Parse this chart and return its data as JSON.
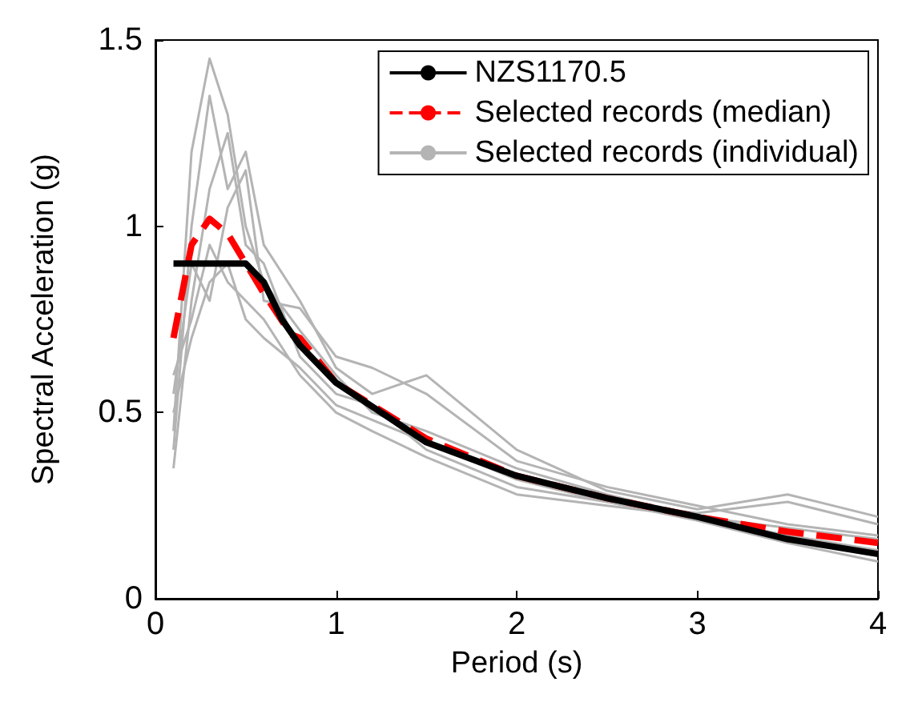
{
  "chart_data": {
    "type": "line",
    "xlabel": "Period (s)",
    "ylabel": "Spectral Acceleration (g)",
    "xlim": [
      0,
      4
    ],
    "xticks": [
      0,
      1,
      2,
      3,
      4
    ],
    "ylim": [
      0,
      1.5
    ],
    "yticks": [
      0,
      0.5,
      1,
      1.5
    ],
    "grid": false,
    "legend": "top right",
    "marker": "none",
    "series": [
      {
        "name": "NZS1170.5",
        "color": "#000000",
        "line_style": "solid",
        "x": [
          0.1,
          0.2,
          0.3,
          0.4,
          0.5,
          0.6,
          0.7,
          0.8,
          1.0,
          1.5,
          2.0,
          2.5,
          3.0,
          3.5,
          4.0
        ],
        "values": [
          0.9,
          0.9,
          0.9,
          0.9,
          0.9,
          0.85,
          0.75,
          0.68,
          0.58,
          0.42,
          0.33,
          0.27,
          0.22,
          0.16,
          0.12
        ]
      },
      {
        "name": "Selected records (median)",
        "color": "#ff0000",
        "line_style": "dashed",
        "x": [
          0.1,
          0.2,
          0.3,
          0.4,
          0.5,
          0.6,
          0.75,
          0.8,
          1.0,
          1.5,
          2.0,
          2.5,
          3.0,
          3.5,
          4.0
        ],
        "values": [
          0.7,
          0.95,
          1.02,
          0.98,
          0.9,
          0.82,
          0.71,
          0.7,
          0.58,
          0.43,
          0.33,
          0.27,
          0.22,
          0.18,
          0.15
        ]
      },
      {
        "name": "Selected records (individual)",
        "color": "#b4b4b4",
        "line_style": "solid",
        "x": [
          0.1,
          0.2,
          0.3,
          0.4,
          0.5,
          0.6,
          0.8,
          1.0,
          1.2,
          1.5,
          2.0,
          2.5,
          3.0,
          3.5,
          4.0
        ],
        "values": [
          0.45,
          1.2,
          1.45,
          1.3,
          1.0,
          0.85,
          0.72,
          0.6,
          0.5,
          0.45,
          0.35,
          0.28,
          0.22,
          0.17,
          0.13
        ]
      },
      {
        "color": "#b4b4b4",
        "line_style": "solid",
        "x": [
          0.1,
          0.2,
          0.3,
          0.4,
          0.5,
          0.6,
          0.8,
          1.0,
          1.2,
          1.5,
          2.0,
          2.5,
          3.0,
          3.5,
          4.0
        ],
        "values": [
          0.35,
          0.8,
          1.1,
          1.25,
          0.95,
          0.9,
          0.65,
          0.55,
          0.52,
          0.4,
          0.3,
          0.26,
          0.23,
          0.26,
          0.2
        ]
      },
      {
        "color": "#b4b4b4",
        "line_style": "solid",
        "x": [
          0.1,
          0.2,
          0.3,
          0.4,
          0.5,
          0.6,
          0.8,
          1.0,
          1.2,
          1.5,
          2.0,
          2.5,
          3.0,
          3.5,
          4.0
        ],
        "values": [
          0.55,
          0.9,
          0.8,
          1.05,
          1.15,
          0.8,
          0.78,
          0.65,
          0.62,
          0.55,
          0.37,
          0.3,
          0.25,
          0.2,
          0.17
        ]
      },
      {
        "color": "#b4b4b4",
        "line_style": "solid",
        "x": [
          0.1,
          0.2,
          0.3,
          0.4,
          0.5,
          0.6,
          0.8,
          1.0,
          1.2,
          1.5,
          2.0,
          2.5,
          3.0,
          3.5,
          4.0
        ],
        "values": [
          0.6,
          0.75,
          0.95,
          0.85,
          0.8,
          0.75,
          0.6,
          0.5,
          0.45,
          0.38,
          0.28,
          0.25,
          0.22,
          0.19,
          0.16
        ]
      },
      {
        "color": "#b4b4b4",
        "line_style": "solid",
        "x": [
          0.1,
          0.2,
          0.3,
          0.4,
          0.5,
          0.6,
          0.8,
          1.0,
          1.2,
          1.5,
          2.0,
          2.5,
          3.0,
          3.5,
          4.0
        ],
        "values": [
          0.4,
          1.0,
          1.35,
          1.1,
          1.2,
          0.95,
          0.8,
          0.62,
          0.55,
          0.6,
          0.4,
          0.29,
          0.24,
          0.28,
          0.22
        ]
      },
      {
        "color": "#b4b4b4",
        "line_style": "solid",
        "x": [
          0.1,
          0.2,
          0.3,
          0.4,
          0.5,
          0.6,
          0.8,
          1.0,
          1.2,
          1.5,
          2.0,
          2.5,
          3.0,
          3.5,
          4.0
        ],
        "values": [
          0.5,
          0.7,
          0.85,
          0.9,
          0.75,
          0.7,
          0.62,
          0.52,
          0.48,
          0.42,
          0.32,
          0.26,
          0.21,
          0.15,
          0.1
        ]
      }
    ]
  }
}
